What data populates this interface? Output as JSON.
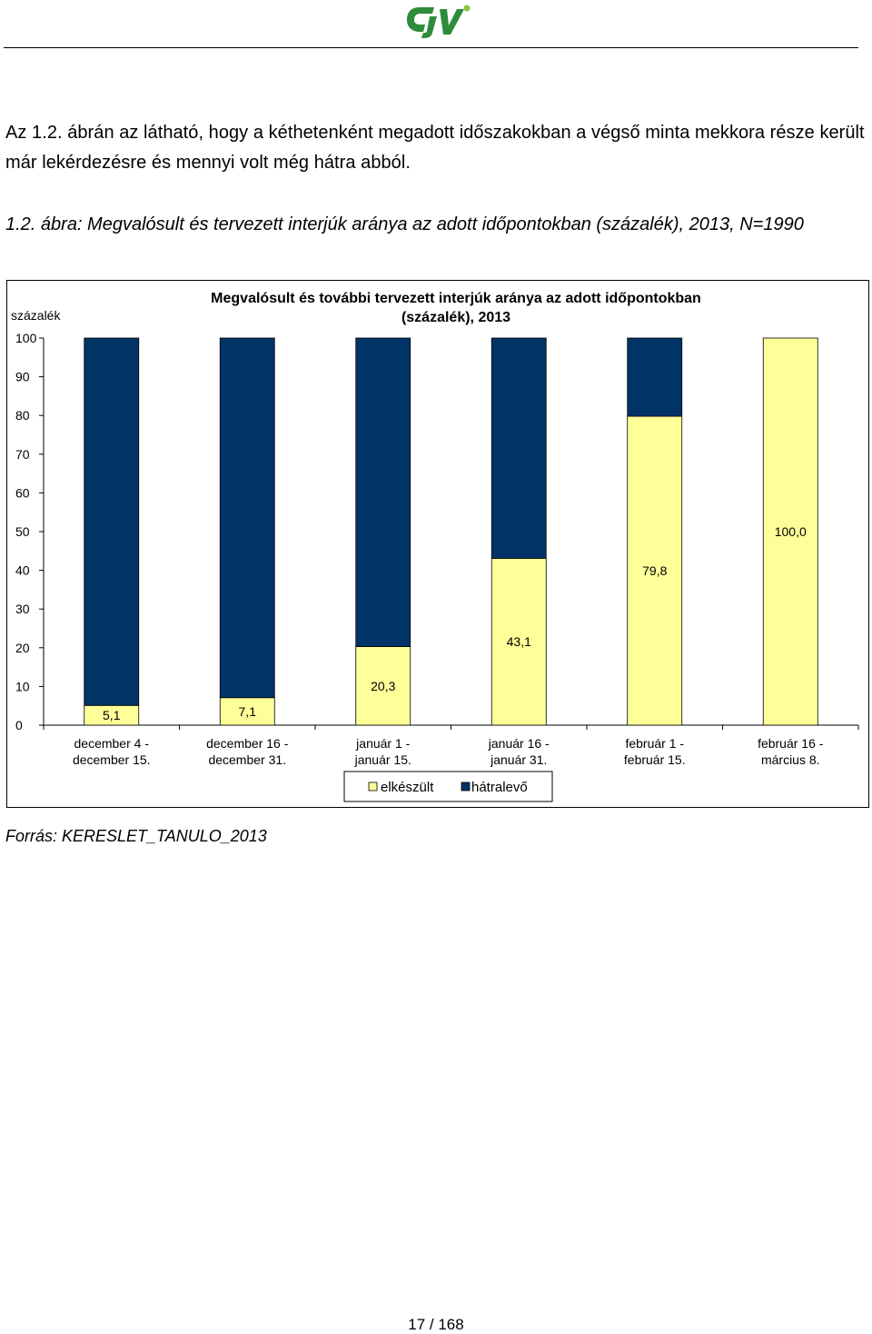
{
  "document": {
    "paragraph": "Az 1.2. ábrán az látható, hogy a kéthetenként megadott időszakokban a végső minta mekkora része került már lekérdezésre és mennyi volt még hátra abból.",
    "caption": "1.2. ábra: Megvalósult és tervezett interjúk aránya az adott időpontokban (százalék), 2013, N=1990",
    "source": "Forrás: KERESLET_TANULO_2013",
    "page_number": "17 / 168"
  },
  "colors": {
    "done": "#ffff99",
    "remaining": "#003366",
    "logo_green": "#2e8b3a",
    "logo_dot": "#8cc63f"
  },
  "chart_data": {
    "type": "bar",
    "stacked": true,
    "title": "Megvalósult és további tervezett interjúk aránya az adott időpontokban (százalék), 2013",
    "ylabel": "százalék",
    "ylim": [
      0,
      100
    ],
    "yticks": [
      0,
      10,
      20,
      30,
      40,
      50,
      60,
      70,
      80,
      90,
      100
    ],
    "categories": [
      [
        "december 4 -",
        "december 15."
      ],
      [
        "december 16 -",
        "december 31."
      ],
      [
        "január 1 -",
        "január 15."
      ],
      [
        "január 16 -",
        "január 31."
      ],
      [
        "február 1 -",
        "február 15."
      ],
      [
        "február 16 -",
        "március 8."
      ]
    ],
    "series": [
      {
        "name": "elkészült",
        "values": [
          5.1,
          7.1,
          20.3,
          43.1,
          79.8,
          100.0
        ]
      },
      {
        "name": "hátralevő",
        "values": [
          94.9,
          92.9,
          79.7,
          56.9,
          20.2,
          0.0
        ]
      }
    ],
    "data_labels": [
      "5,1",
      "7,1",
      "20,3",
      "43,1",
      "79,8",
      "100,0"
    ],
    "legend": "bottom-center",
    "grid": false
  }
}
